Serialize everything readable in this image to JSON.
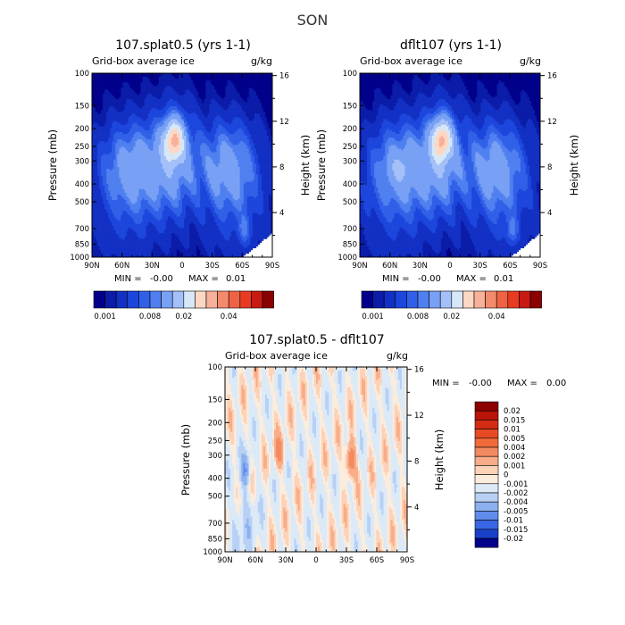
{
  "figure": {
    "title": "SON"
  },
  "chart_data": [
    {
      "type": "heatmap",
      "title": "107.splat0.5 (yrs 1-1)",
      "subtitle_left": "Grid-box average ice",
      "units": "g/kg",
      "ylabel": "Pressure (mb)",
      "ylabel_right": "Height (km)",
      "x_ticks": [
        "90N",
        "60N",
        "30N",
        "0",
        "30S",
        "60S",
        "90S"
      ],
      "y_ticks": [
        "100",
        "150",
        "200",
        "250",
        "300",
        "400",
        "500",
        "700",
        "850",
        "1000"
      ],
      "y_right_ticks": [
        "16",
        "12",
        "8",
        "4"
      ],
      "min_label": "MIN =",
      "min_value": "-0.00",
      "max_label": "MAX =",
      "max_value": "0.01",
      "colorbar_labels": [
        "0.001",
        "0.008",
        "0.02",
        "0.04"
      ],
      "colorbar_levels": [
        0.001,
        0.002,
        0.004,
        0.006,
        0.008,
        0.01,
        0.015,
        0.02,
        0.025,
        0.03,
        0.035,
        0.04,
        0.045,
        0.05,
        0.06
      ],
      "colorbar_colors": [
        "#00008b",
        "#0a1ca8",
        "#1330c4",
        "#1c46dc",
        "#3160e8",
        "#5080f0",
        "#78a0f4",
        "#a4c0f8",
        "#d6e8f8",
        "#fcd8c4",
        "#f8b09a",
        "#f48a6c",
        "#f06244",
        "#e83c22",
        "#c81a10",
        "#8b0000"
      ],
      "field": "ice_control"
    },
    {
      "type": "heatmap",
      "title": "dflt107 (yrs 1-1)",
      "subtitle_left": "Grid-box average ice",
      "units": "g/kg",
      "ylabel": "Pressure (mb)",
      "ylabel_right": "Height (km)",
      "x_ticks": [
        "90N",
        "60N",
        "30N",
        "0",
        "30S",
        "60S",
        "90S"
      ],
      "y_ticks": [
        "100",
        "150",
        "200",
        "250",
        "300",
        "400",
        "500",
        "700",
        "850",
        "1000"
      ],
      "y_right_ticks": [
        "16",
        "12",
        "8",
        "4"
      ],
      "min_label": "MIN =",
      "min_value": "-0.00",
      "max_label": "MAX =",
      "max_value": "0.01",
      "colorbar_labels": [
        "0.001",
        "0.008",
        "0.02",
        "0.04"
      ],
      "colorbar_levels": [
        0.001,
        0.002,
        0.004,
        0.006,
        0.008,
        0.01,
        0.015,
        0.02,
        0.025,
        0.03,
        0.035,
        0.04,
        0.045,
        0.05,
        0.06
      ],
      "colorbar_colors": [
        "#00008b",
        "#0a1ca8",
        "#1330c4",
        "#1c46dc",
        "#3160e8",
        "#5080f0",
        "#78a0f4",
        "#a4c0f8",
        "#d6e8f8",
        "#fcd8c4",
        "#f8b09a",
        "#f48a6c",
        "#f06244",
        "#e83c22",
        "#c81a10",
        "#8b0000"
      ],
      "field": "ice_test"
    },
    {
      "type": "heatmap",
      "title": "107.splat0.5 - dflt107",
      "subtitle_left": "Grid-box average ice",
      "units": "g/kg",
      "ylabel": "Pressure (mb)",
      "ylabel_right": "Height (km)",
      "x_ticks": [
        "90N",
        "60N",
        "30N",
        "0",
        "30S",
        "60S",
        "90S"
      ],
      "y_ticks": [
        "100",
        "150",
        "200",
        "250",
        "300",
        "400",
        "500",
        "700",
        "850",
        "1000"
      ],
      "y_right_ticks": [
        "16",
        "12",
        "8",
        "4"
      ],
      "min_label": "MIN =",
      "min_value": "-0.00",
      "max_label": "MAX =",
      "max_value": "0.00",
      "colorbar_labels": [
        "0.02",
        "0.015",
        "0.01",
        "0.005",
        "0.004",
        "0.002",
        "0.001",
        "0",
        "-0.001",
        "-0.002",
        "-0.004",
        "-0.005",
        "-0.01",
        "-0.015",
        "-0.02"
      ],
      "colorbar_colors": [
        "#8b0000",
        "#b81408",
        "#d42c14",
        "#e84a24",
        "#f06a3c",
        "#f48a60",
        "#f8ac88",
        "#fcd2b8",
        "#fcecdc",
        "#dceaf8",
        "#b8d0f4",
        "#8cb0f0",
        "#608cec",
        "#3866e4",
        "#1a40c8",
        "#00008b"
      ],
      "field": "ice_diff"
    }
  ]
}
